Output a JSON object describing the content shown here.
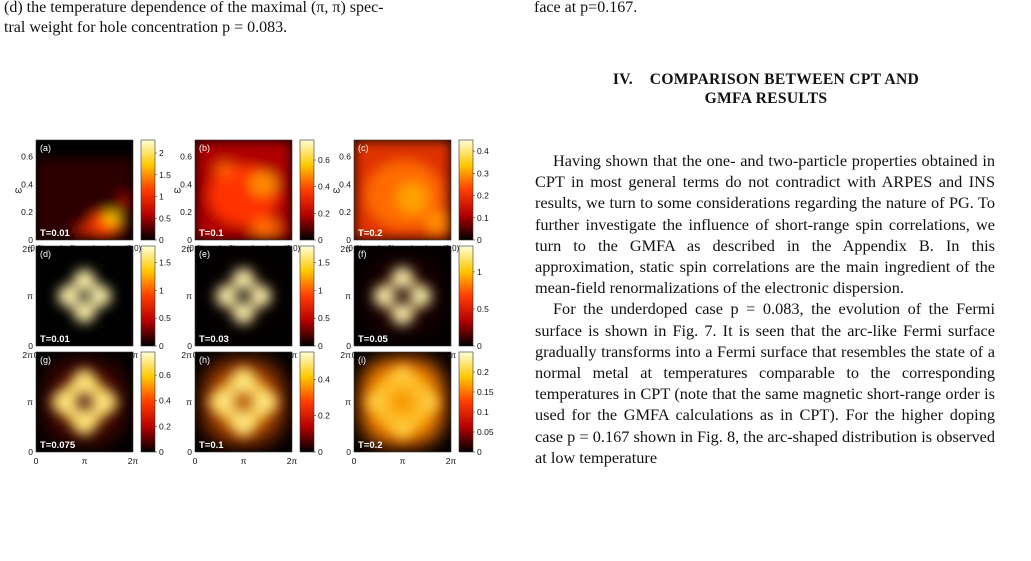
{
  "caption_left": {
    "line1": "(d) the temperature dependence of the maximal (π, π) spec-",
    "line2": "tral weight for hole concentration p = 0.083."
  },
  "caption_right": "face at p=0.167.",
  "section": {
    "number": "IV.",
    "title_line1": "COMPARISON BETWEEN CPT AND",
    "title_line2": "GMFA RESULTS"
  },
  "paragraphs": [
    "Having shown that the one- and two-particle properties obtained in CPT in most general terms do not contradict with ARPES and INS results, we turn to some considerations regarding the nature of PG. To further investigate the influence of short-range spin correlations, we turn to the GMFA as described in the Appendix B. In this approximation, static spin correlations are the main ingredient of the mean-field renormalizations of the electronic dispersion.",
    "For the underdoped case p = 0.083, the evolution of the Fermi surface is shown in Fig. 7. It is seen that the arc-like Fermi surface gradually transforms into a Fermi surface that resembles the state of a normal metal at temperatures comparable to the corresponding temperatures in CPT (note that the same magnetic short-range order is used for the GMFA calculations as in CPT). For the higher doping case p = 0.167 shown in Fig. 8, the arc-shaped distribution is observed at low temperature"
  ],
  "figure": {
    "panels": [
      {
        "letter": "(a)",
        "temp": "T=0.01",
        "type": "spectral",
        "colorbar": [
          "2",
          "1.5",
          "1",
          "0.5",
          "0"
        ],
        "vmax": 2.3
      },
      {
        "letter": "(b)",
        "temp": "T=0.1",
        "type": "spectral",
        "colorbar": [
          "0.6",
          "0.4",
          "0.2",
          "0"
        ],
        "vmax": 0.75
      },
      {
        "letter": "(c)",
        "temp": "T=0.2",
        "type": "spectral",
        "colorbar": [
          "0.4",
          "0.3",
          "0.2",
          "0.1",
          "0"
        ],
        "vmax": 0.45
      },
      {
        "letter": "(d)",
        "temp": "T=0.01",
        "type": "fermi",
        "colorbar": [
          "1.5",
          "1",
          "0.5",
          "0"
        ],
        "vmax": 1.8
      },
      {
        "letter": "(e)",
        "temp": "T=0.03",
        "type": "fermi",
        "colorbar": [
          "1.5",
          "1",
          "0.5",
          "0"
        ],
        "vmax": 1.8
      },
      {
        "letter": "(f)",
        "temp": "T=0.05",
        "type": "fermi",
        "colorbar": [
          "1",
          "0.5",
          "0"
        ],
        "vmax": 1.35
      },
      {
        "letter": "(g)",
        "temp": "T=0.075",
        "type": "fermi",
        "colorbar": [
          "0.6",
          "0.4",
          "0.2",
          "0"
        ],
        "vmax": 0.78
      },
      {
        "letter": "(h)",
        "temp": "T=0.1",
        "type": "fermi",
        "colorbar": [
          "0.4",
          "0.2",
          "0"
        ],
        "vmax": 0.55
      },
      {
        "letter": "(i)",
        "temp": "T=0.2",
        "type": "fermi",
        "colorbar": [
          "0.2",
          "0.15",
          "0.1",
          "0.05",
          "0"
        ],
        "vmax": 0.25
      }
    ],
    "spectral_y_ticks": [
      "0.6",
      "0.4",
      "0.2",
      "0"
    ],
    "spectral_y_label": "ω",
    "spectral_x_ticks": [
      "(0,0)",
      "(π,0)",
      "(π,π)",
      "(0,0)"
    ],
    "k_ticks": [
      "0",
      "π",
      "2π"
    ],
    "colormap": [
      "#000000",
      "#b40000",
      "#ff3c00",
      "#ffc800",
      "#ffffd8"
    ]
  }
}
